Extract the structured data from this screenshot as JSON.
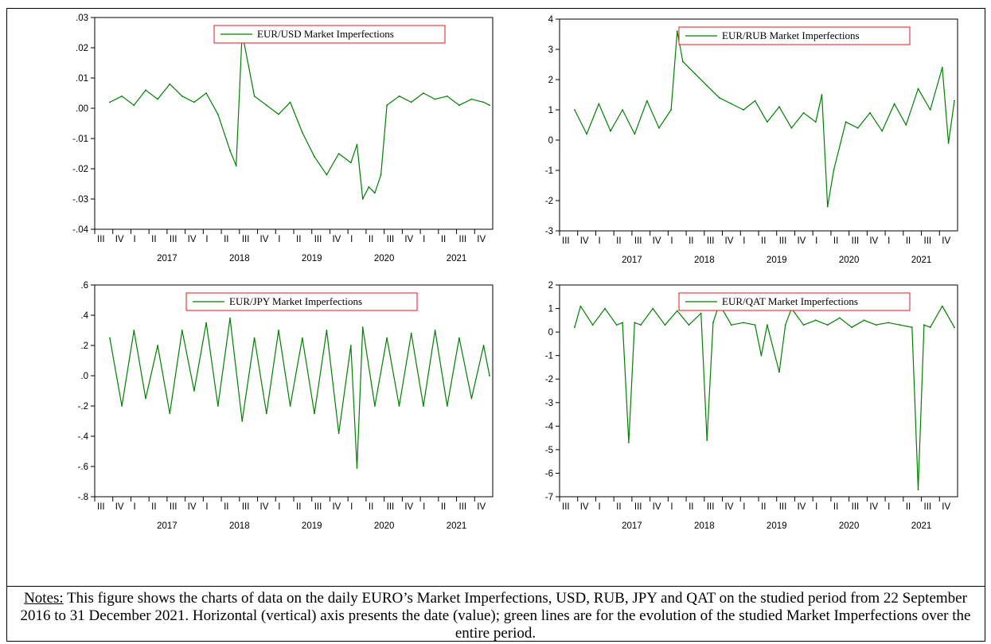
{
  "notes": {
    "label": "Notes:",
    "text": " This figure shows the charts of data on the daily EURO’s Market Imperfections, USD, RUB, JPY and QAT on the studied period from 22 September 2016 to 31 December 2021. Horizontal (vertical) axis presents the date (value); green lines are for the evolution of the studied Market Imperfections over the entire period."
  },
  "colors": {
    "line": "#008000",
    "legend_border": "#e31a1c"
  },
  "chart_data": [
    {
      "type": "line",
      "legend": "EUR/USD Market Imperfections",
      "legend_position": "top-right",
      "ylim": [
        -0.04,
        0.03
      ],
      "yticks": [
        ".03",
        ".02",
        ".01",
        ".00",
        "-.01",
        "-.02",
        "-.03",
        "-.04"
      ],
      "quarter_labels": [
        "III",
        "IV",
        "I",
        "II",
        "III",
        "IV",
        "I",
        "II",
        "III",
        "IV",
        "I",
        "II",
        "III",
        "IV",
        "I",
        "II",
        "III",
        "IV",
        "I",
        "II",
        "III",
        "IV"
      ],
      "year_labels": [
        "2017",
        "2018",
        "2019",
        "2020",
        "2021"
      ],
      "x": [
        "2016-09",
        "2016-11",
        "2017-01",
        "2017-03",
        "2017-05",
        "2017-07",
        "2017-09",
        "2017-11",
        "2018-01",
        "2018-03",
        "2018-05",
        "2018-06",
        "2018-07",
        "2018-09",
        "2018-11",
        "2019-01",
        "2019-03",
        "2019-05",
        "2019-07",
        "2019-09",
        "2019-11",
        "2020-01",
        "2020-02",
        "2020-03",
        "2020-04",
        "2020-05",
        "2020-06",
        "2020-07",
        "2020-09",
        "2020-11",
        "2021-01",
        "2021-03",
        "2021-05",
        "2021-07",
        "2021-09",
        "2021-11",
        "2021-12"
      ],
      "series": [
        {
          "values": [
            0.002,
            0.004,
            0.001,
            0.006,
            0.003,
            0.008,
            0.004,
            0.002,
            0.005,
            -0.002,
            -0.014,
            -0.019,
            0.025,
            0.004,
            0.001,
            -0.002,
            0.002,
            -0.008,
            -0.016,
            -0.022,
            -0.015,
            -0.018,
            -0.012,
            -0.03,
            -0.026,
            -0.028,
            -0.022,
            0.001,
            0.004,
            0.002,
            0.005,
            0.003,
            0.004,
            0.001,
            0.003,
            0.002,
            0.001
          ]
        }
      ]
    },
    {
      "type": "line",
      "legend": "EUR/RUB Market Imperfections",
      "legend_position": "top-right",
      "ylim": [
        -3,
        4
      ],
      "yticks": [
        "4",
        "3",
        "2",
        "1",
        "0",
        "-1",
        "-2",
        "-3"
      ],
      "quarter_labels": [
        "III",
        "IV",
        "I",
        "II",
        "III",
        "IV",
        "I",
        "II",
        "III",
        "IV",
        "I",
        "II",
        "III",
        "IV",
        "I",
        "II",
        "III",
        "IV",
        "I",
        "II",
        "III",
        "IV"
      ],
      "year_labels": [
        "2017",
        "2018",
        "2019",
        "2020",
        "2021"
      ],
      "x": [
        "2016-09",
        "2016-11",
        "2017-01",
        "2017-03",
        "2017-05",
        "2017-07",
        "2017-09",
        "2017-11",
        "2018-01",
        "2018-02",
        "2018-03",
        "2018-05",
        "2018-07",
        "2018-09",
        "2018-11",
        "2019-01",
        "2019-03",
        "2019-05",
        "2019-07",
        "2019-09",
        "2019-11",
        "2020-01",
        "2020-02",
        "2020-03",
        "2020-04",
        "2020-06",
        "2020-08",
        "2020-10",
        "2020-12",
        "2021-02",
        "2021-04",
        "2021-06",
        "2021-08",
        "2021-10",
        "2021-11",
        "2021-12"
      ],
      "series": [
        {
          "values": [
            1.0,
            0.2,
            1.2,
            0.3,
            1.0,
            0.2,
            1.3,
            0.4,
            1.0,
            3.6,
            2.6,
            2.2,
            1.8,
            1.4,
            1.2,
            1.0,
            1.3,
            0.6,
            1.1,
            0.4,
            0.9,
            0.6,
            1.5,
            -2.2,
            -1.0,
            0.6,
            0.4,
            0.9,
            0.3,
            1.2,
            0.5,
            1.7,
            1.0,
            2.4,
            -0.1,
            1.3
          ]
        }
      ]
    },
    {
      "type": "line",
      "legend": "EUR/JPY Market Imperfections",
      "legend_position": "top-left",
      "ylim": [
        -0.8,
        0.6
      ],
      "yticks": [
        ".6",
        ".4",
        ".2",
        ".0",
        "-.2",
        "-.4",
        "-.6",
        "-.8"
      ],
      "quarter_labels": [
        "III",
        "IV",
        "I",
        "II",
        "III",
        "IV",
        "I",
        "II",
        "III",
        "IV",
        "I",
        "II",
        "III",
        "IV",
        "I",
        "II",
        "III",
        "IV",
        "I",
        "II",
        "III",
        "IV"
      ],
      "year_labels": [
        "2017",
        "2018",
        "2019",
        "2020",
        "2021"
      ],
      "x": [
        "2016-09",
        "2016-11",
        "2017-01",
        "2017-03",
        "2017-05",
        "2017-07",
        "2017-09",
        "2017-11",
        "2018-01",
        "2018-03",
        "2018-05",
        "2018-07",
        "2018-09",
        "2018-11",
        "2019-01",
        "2019-03",
        "2019-05",
        "2019-07",
        "2019-09",
        "2019-11",
        "2020-01",
        "2020-02",
        "2020-03",
        "2020-05",
        "2020-07",
        "2020-09",
        "2020-11",
        "2021-01",
        "2021-03",
        "2021-05",
        "2021-07",
        "2021-09",
        "2021-11",
        "2021-12"
      ],
      "series": [
        {
          "values": [
            0.25,
            -0.2,
            0.3,
            -0.15,
            0.2,
            -0.25,
            0.3,
            -0.1,
            0.35,
            -0.2,
            0.38,
            -0.3,
            0.25,
            -0.25,
            0.3,
            -0.2,
            0.25,
            -0.25,
            0.3,
            -0.38,
            0.2,
            -0.61,
            0.32,
            -0.2,
            0.25,
            -0.2,
            0.28,
            -0.2,
            0.3,
            -0.2,
            0.25,
            -0.15,
            0.2,
            0.0
          ]
        }
      ]
    },
    {
      "type": "line",
      "legend": "EUR/QAT Market Imperfections",
      "legend_position": "top-right",
      "ylim": [
        -7,
        2
      ],
      "yticks": [
        "2",
        "1",
        "0",
        "-1",
        "-2",
        "-3",
        "-4",
        "-5",
        "-6",
        "-7"
      ],
      "quarter_labels": [
        "III",
        "IV",
        "I",
        "II",
        "III",
        "IV",
        "I",
        "II",
        "III",
        "IV",
        "I",
        "II",
        "III",
        "IV",
        "I",
        "II",
        "III",
        "IV",
        "I",
        "II",
        "III",
        "IV"
      ],
      "year_labels": [
        "2017",
        "2018",
        "2019",
        "2020",
        "2021"
      ],
      "x": [
        "2016-09",
        "2016-10",
        "2016-12",
        "2017-02",
        "2017-04",
        "2017-05",
        "2017-06",
        "2017-07",
        "2017-08",
        "2017-10",
        "2017-12",
        "2018-02",
        "2018-04",
        "2018-06",
        "2018-07",
        "2018-08",
        "2018-09",
        "2018-11",
        "2019-01",
        "2019-03",
        "2019-04",
        "2019-05",
        "2019-07",
        "2019-08",
        "2019-09",
        "2019-11",
        "2020-01",
        "2020-03",
        "2020-05",
        "2020-07",
        "2020-09",
        "2020-11",
        "2021-01",
        "2021-03",
        "2021-05",
        "2021-06",
        "2021-07",
        "2021-08",
        "2021-10",
        "2021-12"
      ],
      "series": [
        {
          "values": [
            0.2,
            1.1,
            0.3,
            1.0,
            0.3,
            0.4,
            -4.7,
            0.4,
            0.3,
            1.0,
            0.3,
            0.9,
            0.3,
            0.8,
            -4.6,
            0.4,
            1.2,
            0.3,
            0.4,
            0.3,
            -1.0,
            0.3,
            -1.7,
            0.3,
            1.0,
            0.3,
            0.5,
            0.3,
            0.6,
            0.2,
            0.5,
            0.3,
            0.4,
            0.3,
            0.2,
            -6.7,
            0.3,
            0.2,
            1.1,
            0.2
          ]
        }
      ]
    }
  ]
}
